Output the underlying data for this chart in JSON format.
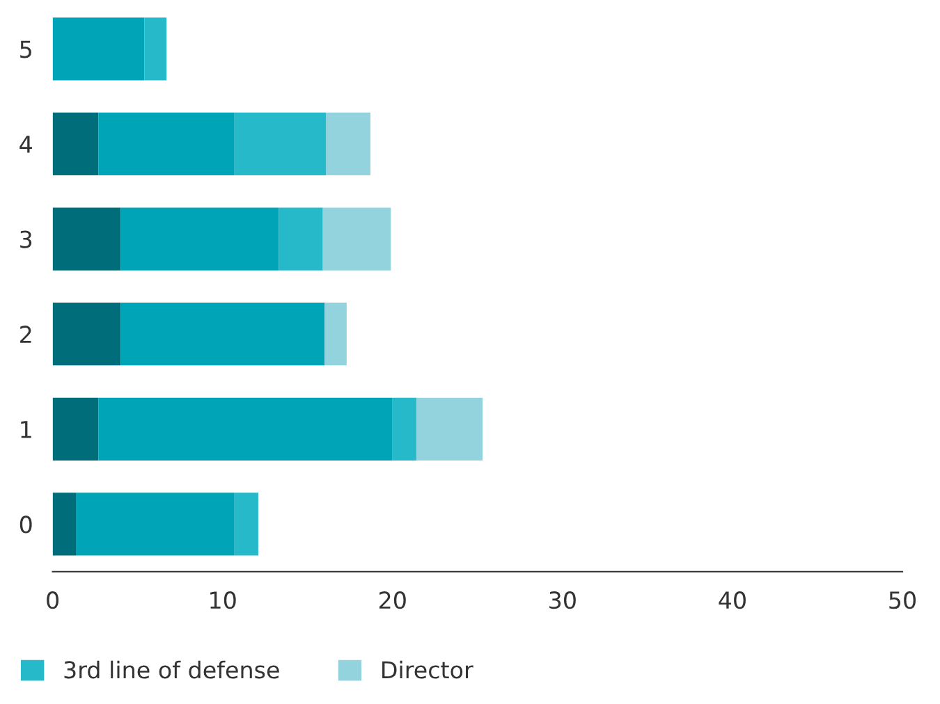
{
  "chart_data": {
    "type": "bar",
    "orientation": "horizontal",
    "stacked": true,
    "categories": [
      "5",
      "4",
      "3",
      "2",
      "1",
      "0"
    ],
    "series": [
      {
        "color": "#006e7a",
        "values": [
          0,
          2.7,
          4.0,
          4.0,
          2.7,
          1.4
        ]
      },
      {
        "color": "#00a4b7",
        "values": [
          5.4,
          8.0,
          9.3,
          12.0,
          17.3,
          9.3
        ]
      },
      {
        "name": "3rd line of defense",
        "color": "#26b9ca",
        "values": [
          1.3,
          5.4,
          2.6,
          0,
          1.4,
          1.4
        ]
      },
      {
        "name": "Director",
        "color": "#93d3de",
        "values": [
          0,
          2.6,
          4.0,
          1.3,
          3.9,
          0
        ]
      }
    ],
    "xlim": [
      0,
      50
    ],
    "xticks": [
      0,
      10,
      20,
      30,
      40,
      50
    ],
    "grid": false,
    "legend": "bottom left"
  }
}
